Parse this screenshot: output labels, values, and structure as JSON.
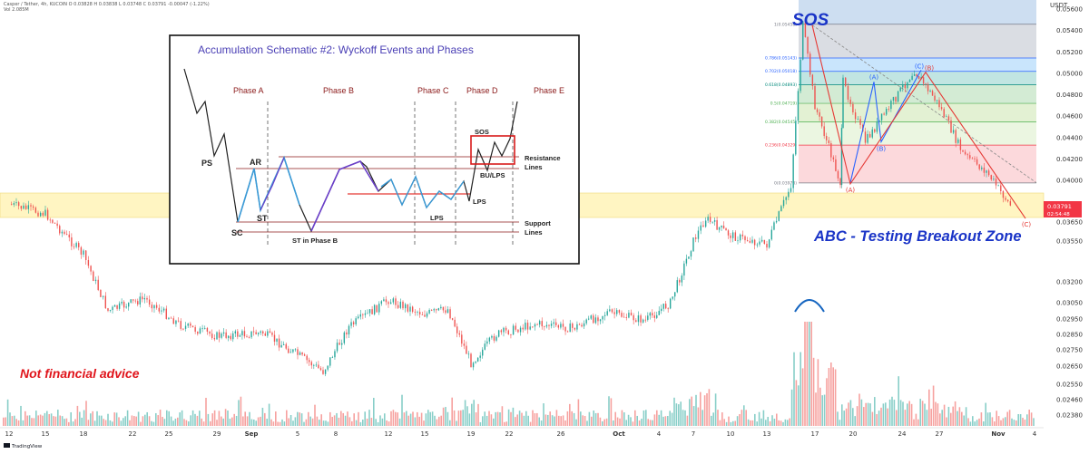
{
  "header": {
    "line1": "Casper / Tether, 4h, KUCOIN  O 0.03828  H 0.03838  L 0.03748  C 0.03791  -0.00047 (-1.22%)",
    "line2": "Vol  2.085M"
  },
  "logo_text": "TradingView",
  "annotations": {
    "sos": "SOS",
    "abc": "ABC - Testing Breakout Zone",
    "not_advice": "Not financial advice"
  },
  "price_badge": {
    "price": "0.03791",
    "countdown": "02:54:48"
  },
  "schematic": {
    "title": "Accumulation Schematic #2: Wyckoff Events and Phases",
    "phases": [
      "Phase A",
      "Phase B",
      "Phase C",
      "Phase D",
      "Phase E"
    ],
    "events": {
      "ps": "PS",
      "ar": "AR",
      "sc": "SC",
      "st": "ST",
      "st_b": "ST in Phase B",
      "lps1": "LPS",
      "lps2": "LPS",
      "sos": "SOS",
      "bu": "BU/LPS"
    },
    "resistance": [
      "Resistance",
      "Lines"
    ],
    "support": [
      "Support",
      "Lines"
    ]
  },
  "fib_levels": [
    {
      "ratio": "1",
      "label": "1(0.05458)",
      "price": 0.05458,
      "color": "#787b86"
    },
    {
      "ratio": "0.786",
      "label": "0.786(0.05143)",
      "price": 0.05143,
      "color": "#2962ff"
    },
    {
      "ratio": "0.702",
      "label": "0.702(0.05018)",
      "price": 0.05018,
      "color": "#2962ff"
    },
    {
      "ratio": "0.618",
      "label": "0.618(0.04893)",
      "price": 0.04893,
      "color": "#00897b"
    },
    {
      "ratio": "0.5",
      "label": "0.5(0.04719)",
      "price": 0.04719,
      "color": "#4caf50"
    },
    {
      "ratio": "0.382",
      "label": "0.382(0.04545)",
      "price": 0.04545,
      "color": "#4caf50"
    },
    {
      "ratio": "0.236",
      "label": "0.236(0.04329)",
      "price": 0.04329,
      "color": "#f23645"
    },
    {
      "ratio": "0",
      "label": "0(0.03978)",
      "price": 0.03978,
      "color": "#787b86"
    }
  ],
  "waves": [
    {
      "label": "(A)",
      "color": "#2962ff",
      "date": "Oct 19",
      "price": 0.0492
    },
    {
      "label": "(B)",
      "color": "#2962ff",
      "date": "Oct 21",
      "price": 0.0436
    },
    {
      "label": "(C)",
      "color": "#2962ff",
      "date": "Oct 25",
      "price": 0.0503
    },
    {
      "label": "(A)",
      "color": "#e53935",
      "date": "Oct 19",
      "price": 0.0397
    },
    {
      "label": "(B)",
      "color": "#e53935",
      "date": "Oct 25",
      "price": 0.0501
    },
    {
      "label": "(C)",
      "color": "#e53935",
      "date": "Nov 2",
      "price": 0.0368
    }
  ],
  "chart_data": {
    "type": "candlestick",
    "pair": "Casper / Tether",
    "timeframe": "4h",
    "exchange": "KUCOIN",
    "ohlc_last": {
      "open": 0.03828,
      "high": 0.03838,
      "low": 0.03748,
      "close": 0.03791,
      "change": -0.00047,
      "change_pct": "-1.22%"
    },
    "volume_last": "2.085M",
    "y_unit": "USDT",
    "y_ticks": [
      "0.05600",
      "0.05400",
      "0.05200",
      "0.05000",
      "0.04800",
      "0.04600",
      "0.04400",
      "0.04200",
      "0.04000",
      "0.03650",
      "0.03550",
      "0.03200",
      "0.03050",
      "0.02950",
      "0.02850",
      "0.02750",
      "0.02650",
      "0.02550",
      "0.02460",
      "0.02380"
    ],
    "x_ticks": [
      "12",
      "15",
      "18",
      "22",
      "25",
      "29",
      "Sep",
      "5",
      "8",
      "12",
      "15",
      "19",
      "22",
      "26",
      "Oct",
      "4",
      "7",
      "10",
      "13",
      "17",
      "20",
      "24",
      "27",
      "Nov",
      "4"
    ],
    "breakout_zone": [
      0.0372,
      0.0386
    ],
    "path": [
      {
        "date": "Aug 12",
        "price": 0.038
      },
      {
        "date": "Aug 15",
        "price": 0.0372
      },
      {
        "date": "Aug 18",
        "price": 0.0343
      },
      {
        "date": "Aug 20",
        "price": 0.03
      },
      {
        "date": "Aug 23",
        "price": 0.0308
      },
      {
        "date": "Aug 26",
        "price": 0.0291
      },
      {
        "date": "Aug 29",
        "price": 0.0284
      },
      {
        "date": "Sep 2",
        "price": 0.0286
      },
      {
        "date": "Sep 5",
        "price": 0.0272
      },
      {
        "date": "Sep 7",
        "price": 0.0262
      },
      {
        "date": "Sep 9",
        "price": 0.029
      },
      {
        "date": "Sep 12",
        "price": 0.0307
      },
      {
        "date": "Sep 15",
        "price": 0.0298
      },
      {
        "date": "Sep 17",
        "price": 0.0301
      },
      {
        "date": "Sep 19",
        "price": 0.0267
      },
      {
        "date": "Sep 21",
        "price": 0.0285
      },
      {
        "date": "Sep 24",
        "price": 0.0292
      },
      {
        "date": "Sep 27",
        "price": 0.0289
      },
      {
        "date": "Sep 30",
        "price": 0.0299
      },
      {
        "date": "Oct 3",
        "price": 0.0294
      },
      {
        "date": "Oct 5",
        "price": 0.0305
      },
      {
        "date": "Oct 7",
        "price": 0.0355
      },
      {
        "date": "Oct 8",
        "price": 0.0368
      },
      {
        "date": "Oct 10",
        "price": 0.0358
      },
      {
        "date": "Oct 13",
        "price": 0.0352
      },
      {
        "date": "Oct 15",
        "price": 0.0396
      },
      {
        "date": "Oct 16",
        "price": 0.0545
      },
      {
        "date": "Oct 17",
        "price": 0.047
      },
      {
        "date": "Oct 19",
        "price": 0.0398
      },
      {
        "date": "Oct 19",
        "price": 0.0492
      },
      {
        "date": "Oct 21",
        "price": 0.0436
      },
      {
        "date": "Oct 25",
        "price": 0.0503
      },
      {
        "date": "Oct 27",
        "price": 0.047
      },
      {
        "date": "Oct 29",
        "price": 0.0425
      },
      {
        "date": "Oct 31",
        "price": 0.0408
      },
      {
        "date": "Nov 2",
        "price": 0.0379
      }
    ]
  }
}
